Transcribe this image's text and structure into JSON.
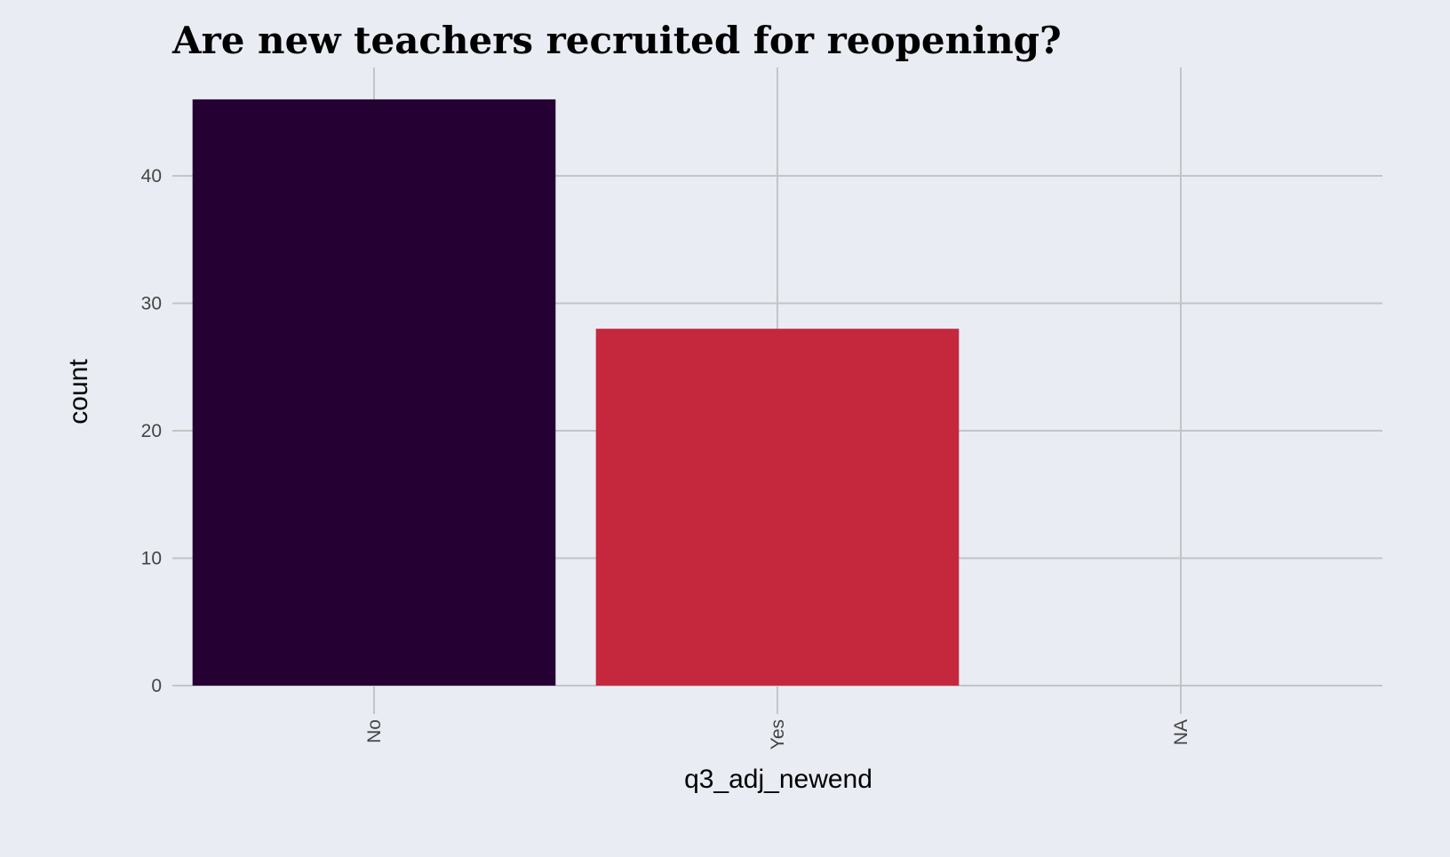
{
  "chart_data": {
    "type": "bar",
    "title": "Are new teachers recruited for reopening?",
    "xlabel": "q3_adj_newend",
    "ylabel": "count",
    "categories": [
      "No",
      "Yes",
      "NA"
    ],
    "values": [
      46,
      28,
      0
    ],
    "bar_colors": [
      "#250032",
      "#c5283d",
      "#eaecf4"
    ],
    "ylim": [
      0,
      48.5
    ],
    "yticks": [
      0,
      10,
      20,
      30,
      40
    ],
    "grid": true,
    "legend": "none"
  },
  "colors": {
    "background": "#eaecf4",
    "gridline": "#c4c4c4",
    "tick_text": "#444444",
    "title_text": "#000000"
  }
}
